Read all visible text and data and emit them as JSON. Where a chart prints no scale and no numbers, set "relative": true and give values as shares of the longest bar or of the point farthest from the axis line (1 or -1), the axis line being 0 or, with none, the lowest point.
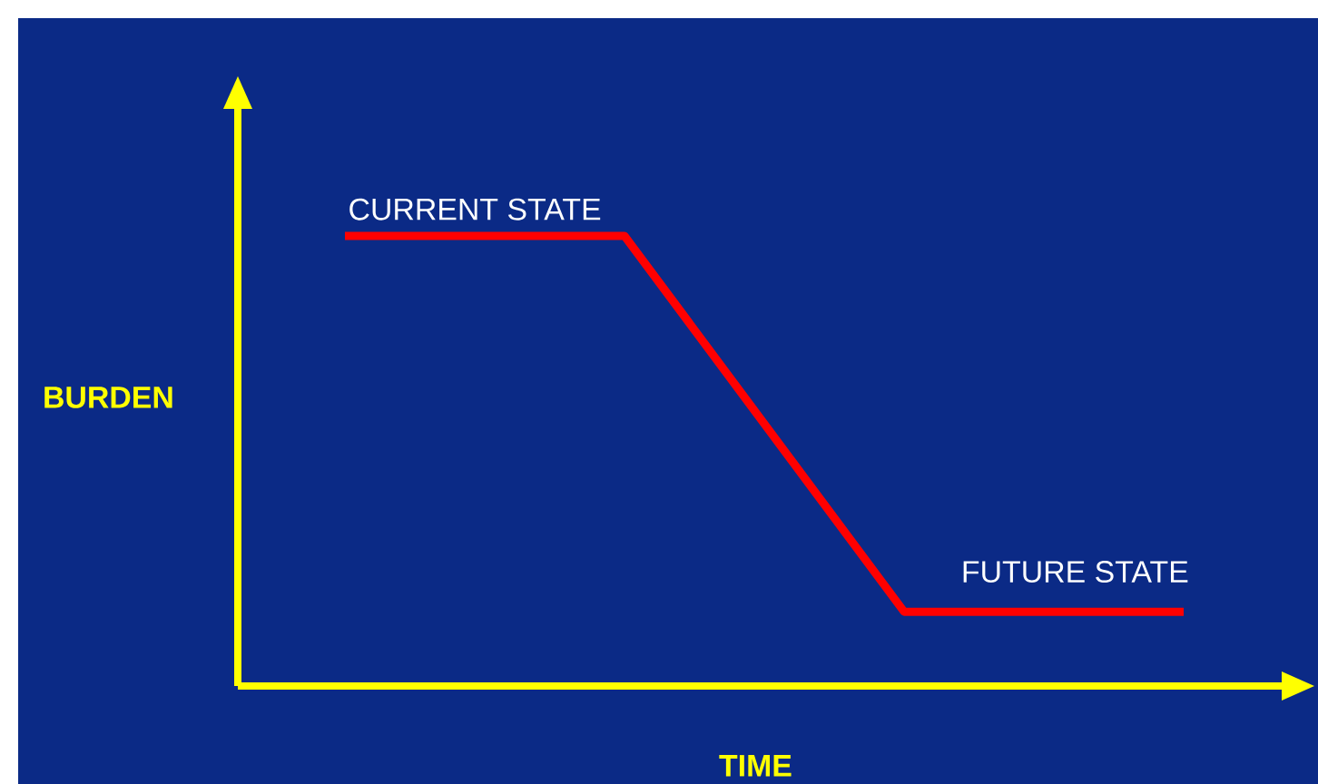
{
  "chart_data": {
    "type": "line",
    "relative": true,
    "xlabel": "TIME",
    "ylabel": "BURDEN",
    "categories": [
      null,
      null,
      null,
      null
    ],
    "series": [
      {
        "color": "#ff0000",
        "values": [
          1,
          1,
          0.165,
          0.165
        ]
      }
    ],
    "annotations": [
      "CURRENT STATE",
      "FUTURE STATE"
    ]
  }
}
